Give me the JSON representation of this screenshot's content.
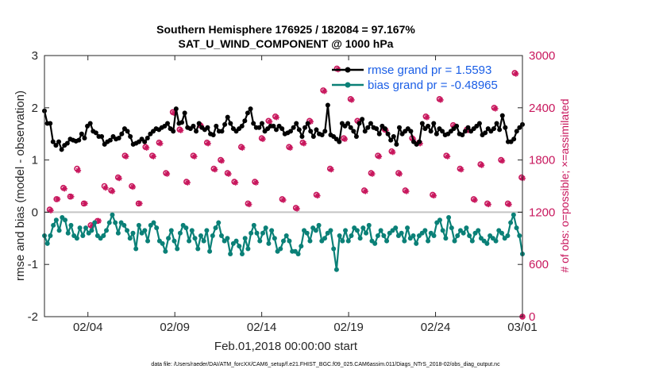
{
  "chart_data": {
    "type": "line",
    "title": "Southern Hemisphere 176925 / 182084 = 97.167%",
    "subtitle": "SAT_U_WIND_COMPONENT @ 1000 hPa",
    "xlabel": "Feb.01,2018 00:00:00 start",
    "ylabel": "rmse and bias (model - observation)",
    "y2label": "# of obs: o=possible; ×=assimilated",
    "ylim": [
      -2,
      3
    ],
    "y2lim": [
      0,
      3000
    ],
    "xlim": [
      0.5,
      28
    ],
    "yticks": [
      "-2",
      "-1",
      "0",
      "1",
      "2",
      "3"
    ],
    "y2ticks": [
      "0",
      "600",
      "1200",
      "1800",
      "2400",
      "3000"
    ],
    "xticks": [
      {
        "x": 3,
        "label": "02/04"
      },
      {
        "x": 8,
        "label": "02/09"
      },
      {
        "x": 13,
        "label": "02/14"
      },
      {
        "x": 18,
        "label": "02/19"
      },
      {
        "x": 23,
        "label": "02/24"
      },
      {
        "x": 28,
        "label": "03/01"
      }
    ],
    "legend": "top-right",
    "footnote": "data file: /Users/raeder/DAI/ATM_forcXX/CAM6_setup/f.e21.FHIST_BGC.f09_025.CAM6assim.011/Diags_NTrS_2018-02/obs_diag_output.nc",
    "series": [
      {
        "name": "rmse grand pr = 1.5593",
        "color": "#000000",
        "marker": "circle",
        "values": [
          1.94,
          1.7,
          1.7,
          1.35,
          1.28,
          1.35,
          1.2,
          1.28,
          1.32,
          1.4,
          1.38,
          1.36,
          1.38,
          1.5,
          1.42,
          1.65,
          1.7,
          1.55,
          1.52,
          1.45,
          1.45,
          1.3,
          1.35,
          1.38,
          1.45,
          1.4,
          1.42,
          1.5,
          1.6,
          1.55,
          1.45,
          1.3,
          1.32,
          1.35,
          1.4,
          1.35,
          1.42,
          1.5,
          1.55,
          1.6,
          1.58,
          1.62,
          1.65,
          1.7,
          1.6,
          1.55,
          1.98,
          1.7,
          1.72,
          1.9,
          1.62,
          1.6,
          1.65,
          1.55,
          1.7,
          1.62,
          1.58,
          1.62,
          1.5,
          1.48,
          1.65,
          1.55,
          1.55,
          1.68,
          1.82,
          1.7,
          1.6,
          1.55,
          1.6,
          1.65,
          1.75,
          1.9,
          1.98,
          1.7,
          1.62,
          1.62,
          1.7,
          1.55,
          1.6,
          1.65,
          1.65,
          1.58,
          1.65,
          1.6,
          1.5,
          1.52,
          1.55,
          1.62,
          1.7,
          1.58,
          1.45,
          1.62,
          1.7,
          1.55,
          1.45,
          1.58,
          1.5,
          1.48,
          1.55,
          2.05,
          1.48,
          1.45,
          1.4,
          1.35,
          1.7,
          1.65,
          1.7,
          1.62,
          1.55,
          1.45,
          1.7,
          1.78,
          1.55,
          1.62,
          1.7,
          1.62,
          1.6,
          1.5,
          1.65,
          1.6,
          1.5,
          1.38,
          1.45,
          1.3,
          1.62,
          1.5,
          1.55,
          1.6,
          1.55,
          1.35,
          1.3,
          1.35,
          1.7,
          1.6,
          1.65,
          1.55,
          1.7,
          1.5,
          1.6,
          1.55,
          1.48,
          1.5,
          1.55,
          1.6,
          1.65,
          1.5,
          1.48,
          1.55,
          1.62,
          1.55,
          1.6,
          1.65,
          1.7,
          1.48,
          1.52,
          1.6,
          1.55,
          1.6,
          1.7,
          1.58,
          1.85,
          1.62,
          1.35,
          1.35,
          1.4,
          1.55,
          1.62,
          1.68
        ]
      },
      {
        "name": "bias grand pr = -0.48965",
        "color": "#0a8077",
        "marker": "circle",
        "values": [
          -0.45,
          -0.6,
          -0.45,
          -0.25,
          -0.15,
          -0.35,
          -0.1,
          -0.15,
          -0.4,
          -0.25,
          -0.45,
          -0.5,
          -0.3,
          -0.45,
          -0.3,
          -0.4,
          -0.35,
          -0.2,
          -0.45,
          -0.5,
          -0.45,
          -0.35,
          -0.2,
          -0.05,
          -0.2,
          -0.4,
          -0.2,
          -0.25,
          -0.35,
          -0.5,
          -0.4,
          -0.7,
          -0.25,
          -0.4,
          -0.35,
          -0.55,
          -0.25,
          -0.2,
          -0.3,
          -0.55,
          -0.6,
          -0.75,
          -0.5,
          -0.35,
          -0.55,
          -0.7,
          -0.4,
          -0.25,
          -0.3,
          -0.55,
          -0.35,
          -0.5,
          -0.7,
          -0.45,
          -0.55,
          -0.35,
          -0.75,
          -0.45,
          -0.3,
          -0.2,
          -0.45,
          -0.55,
          -0.5,
          -0.8,
          -0.6,
          -0.55,
          -0.65,
          -0.8,
          -0.5,
          -0.7,
          -0.4,
          -0.25,
          -0.4,
          -0.55,
          -0.4,
          -0.3,
          -0.6,
          -0.35,
          -0.5,
          -0.75,
          -0.7,
          -0.55,
          -0.45,
          -0.55,
          -0.75,
          -0.75,
          -0.8,
          -0.65,
          -0.35,
          -0.4,
          -0.55,
          -0.3,
          -0.35,
          -0.25,
          -0.55,
          -0.5,
          -0.4,
          -0.35,
          -0.7,
          -1.1,
          -0.45,
          -0.55,
          -0.35,
          -0.55,
          -0.45,
          -0.3,
          -0.35,
          -0.5,
          -0.3,
          -0.4,
          -0.25,
          -0.55,
          -0.6,
          -0.45,
          -0.35,
          -0.45,
          -0.55,
          -0.4,
          -0.35,
          -0.3,
          -0.45,
          -0.4,
          -0.55,
          -0.3,
          -0.5,
          -0.45,
          -0.6,
          -0.45,
          -0.4,
          -0.35,
          -0.55,
          -0.4,
          -0.45,
          -0.2,
          -0.15,
          -0.35,
          -0.5,
          -0.1,
          -0.3,
          -0.55,
          -0.45,
          -0.35,
          -0.4,
          -0.3,
          -0.45,
          -0.55,
          -0.4,
          -0.35,
          -0.5,
          -0.55,
          -0.6,
          -0.45,
          -0.5,
          -0.55,
          -0.35,
          -0.4,
          -0.5,
          -0.45,
          -0.2,
          -0.05,
          -0.3,
          -0.45,
          -0.8
        ]
      },
      {
        "name": "possible",
        "color": "#c8175d",
        "marker": "o",
        "axis": "y2",
        "values": [
          1230,
          1350,
          1480,
          1380,
          1700,
          1300,
          1050,
          1100,
          1500,
          1450,
          1600,
          1850,
          1500,
          1300,
          1950,
          1850,
          2000,
          1650,
          2350,
          2150,
          1550,
          1850,
          2200,
          2000,
          1700,
          1800,
          1650,
          1550,
          1950,
          1300,
          1550,
          2050,
          2250,
          2300,
          1350,
          1950,
          1250,
          2000,
          2250,
          1400,
          2600,
          1700,
          2850,
          2050,
          2500,
          2250,
          1450,
          1650,
          1850,
          2150,
          1900,
          1650,
          1450,
          2050,
          2000,
          2300,
          1400,
          2500,
          1850,
          2200,
          1700,
          2150,
          1350,
          1750,
          1300,
          2400,
          1800,
          1300,
          2800,
          1600
        ]
      },
      {
        "name": "assimilated",
        "color": "#c8175d",
        "marker": "x",
        "axis": "y2",
        "values": [
          1220,
          1350,
          1470,
          1380,
          1680,
          1300,
          1040,
          1100,
          1480,
          1440,
          1590,
          1840,
          1490,
          1300,
          1940,
          1840,
          1990,
          1640,
          2340,
          2140,
          1540,
          1840,
          2190,
          1990,
          1690,
          1790,
          1640,
          1540,
          1940,
          1290,
          1540,
          2040,
          2240,
          2290,
          1340,
          1940,
          1240,
          1990,
          2240,
          1390,
          2590,
          1690,
          2840,
          2040,
          2490,
          2240,
          1440,
          1640,
          1840,
          2140,
          1890,
          1640,
          1440,
          2040,
          1990,
          2290,
          1390,
          2490,
          1840,
          2190,
          1690,
          2140,
          1340,
          1740,
          1290,
          2390,
          1790,
          1290,
          2790,
          1590
        ]
      }
    ]
  }
}
